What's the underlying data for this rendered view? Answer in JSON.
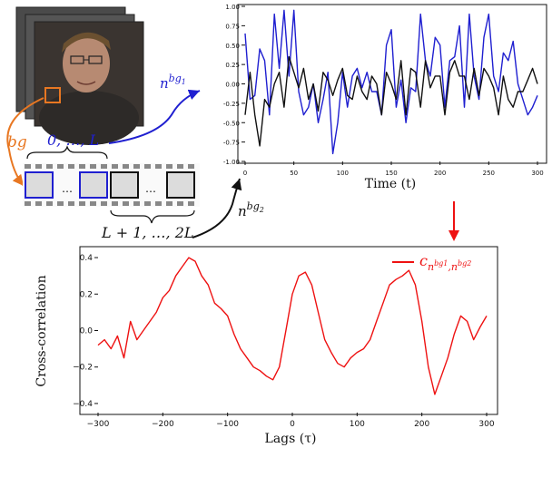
{
  "colors": {
    "blue": "#1f1fd0",
    "black": "#111111",
    "red": "#ee1111",
    "orange": "#e87722",
    "gray": "#aaaaaa"
  },
  "face_stack": {
    "icon": "portrait-photo-icon",
    "region_label": "bg",
    "indices_first": "0, …, L",
    "indices_second": "L + 1, …, 2L",
    "strip_dots": "…"
  },
  "arrows": {
    "signal_1": "n",
    "signal_1_sup": "bg",
    "signal_1_sub": "1",
    "signal_2": "n",
    "signal_2_sup": "bg",
    "signal_2_sub": "2"
  },
  "top_chart": {
    "chart_data": {
      "type": "line",
      "xlabel": "Time (t)",
      "ylabel": "",
      "xlim": [
        0,
        300
      ],
      "ylim": [
        -1.0,
        1.0
      ],
      "xticks": [
        "0",
        "50",
        "100",
        "150",
        "200",
        "250",
        "300"
      ],
      "yticks": [
        "-1.00",
        "-0.75",
        "-0.50",
        "-0.25",
        "0.00",
        "0.25",
        "0.50",
        "0.75",
        "1.00"
      ],
      "series": [
        {
          "color": "#1f1fd0",
          "x": [
            0,
            5,
            10,
            15,
            20,
            25,
            30,
            35,
            40,
            45,
            50,
            55,
            60,
            65,
            70,
            75,
            80,
            85,
            90,
            95,
            100,
            105,
            110,
            115,
            120,
            125,
            130,
            135,
            140,
            145,
            150,
            155,
            160,
            165,
            170,
            175,
            180,
            185,
            190,
            195,
            200,
            205,
            210,
            215,
            220,
            225,
            230,
            235,
            240,
            245,
            250,
            255,
            260,
            265,
            270,
            275,
            280,
            285,
            290,
            295,
            300
          ],
          "y": [
            0.65,
            -0.2,
            -0.15,
            0.45,
            0.3,
            -0.4,
            0.9,
            0.2,
            0.95,
            0.1,
            0.95,
            -0.1,
            -0.4,
            -0.3,
            0.0,
            -0.5,
            -0.2,
            0.15,
            -0.9,
            -0.5,
            0.15,
            -0.3,
            0.1,
            0.2,
            -0.05,
            0.15,
            -0.1,
            -0.1,
            -0.4,
            0.5,
            0.7,
            -0.3,
            0.05,
            -0.5,
            -0.05,
            -0.1,
            0.9,
            0.3,
            0.1,
            0.6,
            0.5,
            -0.3,
            0.3,
            0.35,
            0.75,
            -0.3,
            0.9,
            0.1,
            -0.2,
            0.6,
            0.9,
            0.1,
            -0.1,
            0.4,
            0.3,
            0.55,
            0.0,
            -0.2,
            -0.4,
            -0.3,
            -0.15
          ]
        },
        {
          "color": "#111111",
          "x": [
            0,
            5,
            10,
            15,
            20,
            25,
            30,
            35,
            40,
            45,
            50,
            55,
            60,
            65,
            70,
            75,
            80,
            85,
            90,
            95,
            100,
            105,
            110,
            115,
            120,
            125,
            130,
            135,
            140,
            145,
            150,
            155,
            160,
            165,
            170,
            175,
            180,
            185,
            190,
            195,
            200,
            205,
            210,
            215,
            220,
            225,
            230,
            235,
            240,
            245,
            250,
            255,
            260,
            265,
            270,
            275,
            280,
            285,
            290,
            295,
            300
          ],
          "y": [
            -0.4,
            0.15,
            -0.4,
            -0.8,
            -0.2,
            -0.3,
            0.0,
            0.15,
            -0.3,
            0.35,
            0.15,
            -0.05,
            0.2,
            -0.2,
            0.0,
            -0.35,
            0.15,
            0.05,
            -0.15,
            0.05,
            0.2,
            -0.15,
            -0.2,
            0.1,
            -0.1,
            -0.2,
            0.1,
            0.0,
            -0.4,
            0.15,
            0.0,
            -0.2,
            0.3,
            -0.4,
            0.2,
            0.15,
            -0.3,
            0.3,
            -0.05,
            0.1,
            0.1,
            -0.4,
            0.15,
            0.3,
            0.1,
            0.1,
            -0.2,
            0.2,
            -0.15,
            0.2,
            0.1,
            -0.05,
            -0.4,
            0.1,
            -0.2,
            -0.3,
            -0.1,
            -0.1,
            0.05,
            0.2,
            0.0
          ]
        }
      ]
    }
  },
  "bottom_chart": {
    "chart_data": {
      "type": "line",
      "xlabel": "Lags (τ)",
      "ylabel": "Cross-correlation",
      "xlim": [
        -300,
        300
      ],
      "ylim": [
        -0.45,
        0.45
      ],
      "xticks": [
        "−300",
        "−200",
        "−100",
        "0",
        "100",
        "200",
        "300"
      ],
      "yticks": [
        "−0.4",
        "−0.2",
        "0.0",
        "0.2",
        "0.4"
      ],
      "legend": {
        "position": "top-right",
        "label": "c",
        "label_sub": "n",
        "label_sub_sup1": "bg1",
        "label_sub_sup2": ",n",
        "label_sub_sup3": "bg2"
      },
      "series": [
        {
          "color": "#ee1111",
          "x": [
            -300,
            -290,
            -280,
            -270,
            -260,
            -250,
            -240,
            -230,
            -220,
            -210,
            -200,
            -190,
            -180,
            -170,
            -160,
            -150,
            -140,
            -130,
            -120,
            -110,
            -100,
            -90,
            -80,
            -70,
            -60,
            -50,
            -40,
            -30,
            -20,
            -10,
            0,
            10,
            20,
            30,
            40,
            50,
            60,
            70,
            80,
            90,
            100,
            110,
            120,
            130,
            140,
            150,
            160,
            170,
            180,
            190,
            200,
            210,
            220,
            230,
            240,
            250,
            260,
            270,
            280,
            290,
            300
          ],
          "y": [
            -0.08,
            -0.05,
            -0.1,
            -0.03,
            -0.15,
            0.05,
            -0.05,
            0.0,
            0.05,
            0.1,
            0.18,
            0.22,
            0.3,
            0.35,
            0.4,
            0.38,
            0.3,
            0.25,
            0.15,
            0.12,
            0.08,
            -0.02,
            -0.1,
            -0.15,
            -0.2,
            -0.22,
            -0.25,
            -0.27,
            -0.2,
            0.0,
            0.2,
            0.3,
            0.32,
            0.25,
            0.1,
            -0.05,
            -0.12,
            -0.18,
            -0.2,
            -0.15,
            -0.12,
            -0.1,
            -0.05,
            0.05,
            0.15,
            0.25,
            0.28,
            0.3,
            0.33,
            0.25,
            0.05,
            -0.2,
            -0.35,
            -0.25,
            -0.15,
            -0.02,
            0.08,
            0.05,
            -0.05,
            0.02,
            0.08
          ]
        }
      ]
    }
  }
}
